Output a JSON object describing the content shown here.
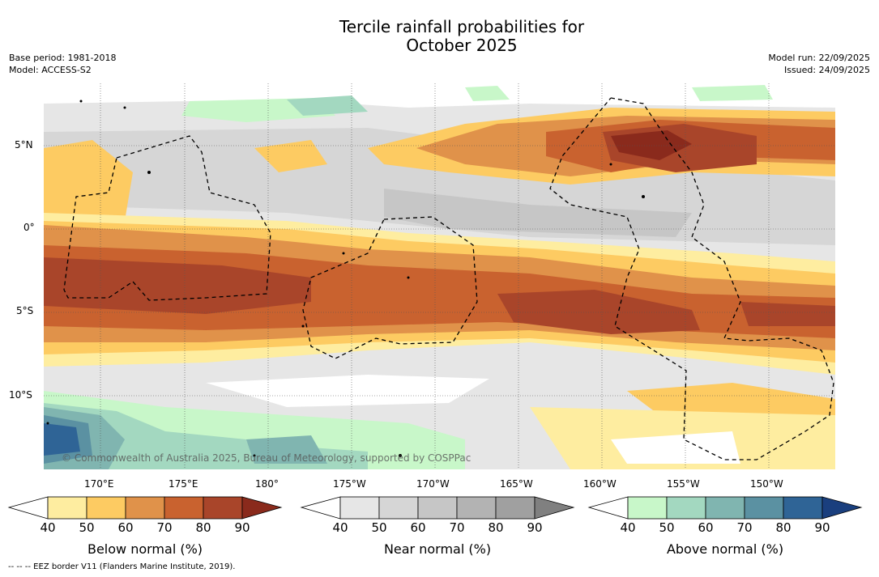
{
  "title_line1": "Tercile rainfall probabilities for",
  "title_line2": "October 2025",
  "base_period": "Base period: 1981-2018",
  "model": "Model: ACCESS-S2",
  "model_run": "Model run: 22/09/2025",
  "issued": "Issued: 24/09/2025",
  "lat_labels": [
    "5°N",
    "0°",
    "5°S",
    "10°S"
  ],
  "lon_labels": [
    "170°E",
    "175°E",
    "180°",
    "175°W",
    "170°W",
    "165°W",
    "160°W",
    "155°W",
    "150°W"
  ],
  "copyright": "© Commonwealth of Australia 2025, Bureau of Meteorology, supported by COSPPac",
  "colorbars": [
    {
      "name": "below",
      "label": "Below normal (%)",
      "ticks": [
        "40",
        "50",
        "60",
        "70",
        "80",
        "90"
      ],
      "colors": [
        "#ffffff",
        "#feeda0",
        "#fdcb62",
        "#e0924a",
        "#c9622f",
        "#a9452a",
        "#8a2a1c"
      ]
    },
    {
      "name": "near",
      "label": "Near normal (%)",
      "ticks": [
        "40",
        "50",
        "60",
        "70",
        "80",
        "90"
      ],
      "colors": [
        "#ffffff",
        "#e6e6e6",
        "#d6d6d6",
        "#c6c6c6",
        "#b3b3b3",
        "#a0a0a0",
        "#808080"
      ]
    },
    {
      "name": "above",
      "label": "Above normal (%)",
      "ticks": [
        "40",
        "50",
        "60",
        "70",
        "80",
        "90"
      ],
      "colors": [
        "#ffffff",
        "#c8f7c9",
        "#a3d8c0",
        "#80b5b0",
        "#5b91a2",
        "#2f6496",
        "#1a3f7e"
      ]
    }
  ],
  "eez_note": "-- -- -- EEZ border V11 (Flanders Marine Institute, 2019)."
}
